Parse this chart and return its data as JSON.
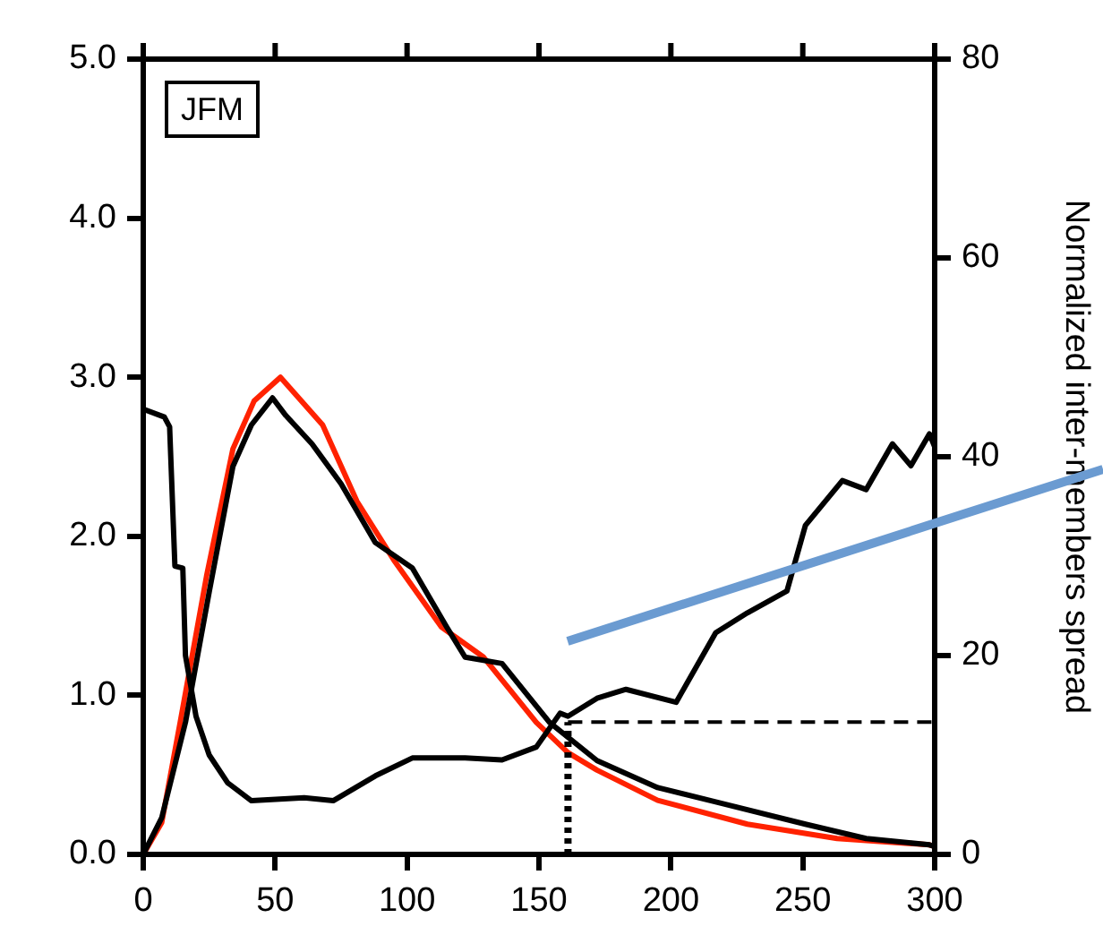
{
  "chart_data": {
    "type": "line",
    "y2label": "Normalized inter-members spread",
    "annotations": [
      "JFM"
    ],
    "series": [
      {
        "color": "#000000",
        "axis": "y2",
        "x": [
          0,
          8,
          10,
          12,
          15,
          16,
          20,
          25,
          32,
          41,
          61,
          72,
          88,
          102,
          122,
          136,
          149,
          158,
          161,
          172,
          183,
          202,
          217,
          229,
          244,
          251,
          265,
          274,
          284,
          291,
          298,
          300
        ],
        "values": [
          44.8,
          44,
          43,
          29,
          28.8,
          20,
          13.9,
          10,
          7.2,
          5.4,
          5.7,
          5.4,
          7.9,
          9.7,
          9.7,
          9.5,
          10.8,
          14.2,
          13.9,
          15.7,
          16.6,
          15.3,
          22.3,
          24.3,
          26.5,
          33.1,
          37.6,
          36.7,
          41.3,
          39.1,
          42.3,
          41
        ]
      },
      {
        "color": "#000000",
        "x": [
          0,
          7,
          16,
          25,
          34,
          41,
          49,
          54,
          64,
          75,
          88,
          102,
          115,
          122,
          136,
          154,
          172,
          195,
          217,
          251,
          274,
          298,
          300
        ],
        "values": [
          0,
          0.23,
          0.83,
          1.65,
          2.44,
          2.7,
          2.87,
          2.76,
          2.58,
          2.33,
          1.96,
          1.8,
          1.43,
          1.24,
          1.2,
          0.83,
          0.59,
          0.42,
          0.33,
          0.19,
          0.1,
          0.06,
          0.05
        ]
      },
      {
        "color": "#ff2200",
        "x": [
          0,
          7,
          14,
          24,
          34,
          42,
          52,
          68,
          81,
          95,
          113,
          129,
          149,
          161,
          172,
          195,
          229,
          263,
          298,
          300
        ],
        "values": [
          0,
          0.2,
          0.83,
          1.75,
          2.55,
          2.85,
          3.0,
          2.7,
          2.22,
          1.85,
          1.43,
          1.24,
          0.83,
          0.64,
          0.53,
          0.34,
          0.19,
          0.1,
          0.06,
          0.05
        ]
      }
    ],
    "xlim": [
      0,
      300
    ],
    "xticks": [
      0,
      50,
      100,
      150,
      200,
      250,
      300
    ],
    "ylim": [
      0,
      5
    ],
    "yticks": [
      {
        "value": 0,
        "label": "0.0"
      },
      {
        "value": 1,
        "label": "1.0"
      },
      {
        "value": 2,
        "label": "2.0"
      },
      {
        "value": 3,
        "label": "3.0"
      },
      {
        "value": 4,
        "label": "4.0"
      },
      {
        "value": 5,
        "label": "5.0"
      }
    ],
    "y2lim": [
      0,
      80
    ],
    "y2ticks": [
      0,
      20,
      40,
      60,
      80
    ],
    "ref_lines": [
      {
        "axis": "x",
        "value": 161,
        "line_style": "dotted",
        "color": "#000000"
      },
      {
        "axis": "y2",
        "value": 13.3,
        "line_style": "dashed",
        "color": "#000000"
      }
    ],
    "grid": false,
    "legend": false,
    "marker": "none",
    "line_style": "solid"
  }
}
